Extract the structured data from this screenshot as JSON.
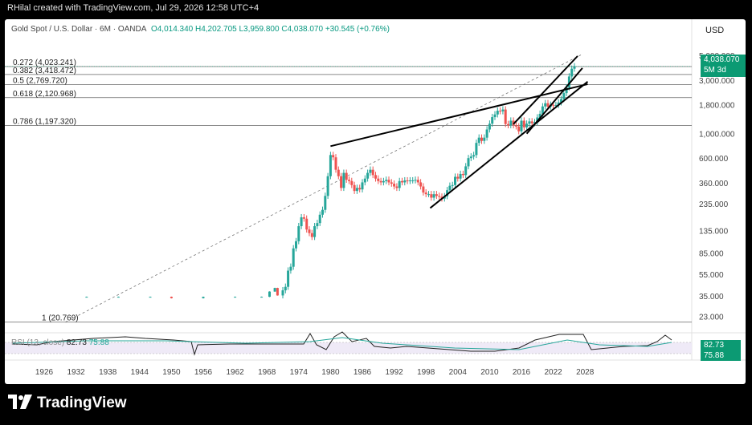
{
  "header": {
    "creator_line": "RHilal created with TradingView.com, Jul 29, 2026 12:58 UTC+4",
    "brand": "TradingView"
  },
  "legend": {
    "symbol": "Gold Spot / U.S. Dollar · 6M · OANDA",
    "open": "O4,014.340",
    "high": "H4,202.705",
    "low": "L3,959.800",
    "close": "C4,038.070",
    "change": "+30.545 (+0.76%)"
  },
  "price_label": {
    "currency": "USD",
    "last": "4,038.070",
    "countdown": "5M 3d"
  },
  "rsi": {
    "label": "RSI (13, close)",
    "value": "82.73",
    "ma_value": "75.88",
    "badge_value": "82.73",
    "badge_ma": "75.88"
  },
  "colors": {
    "up": "#26a69a",
    "down": "#ef5350",
    "accent": "#0c9a73",
    "rsi_line": "#222222",
    "rsi_ma": "#26a69a"
  },
  "chart_data": {
    "type": "candlestick",
    "title": "Gold Spot / U.S. Dollar · 6M · OANDA",
    "scale": "log",
    "y_ticks": [
      "5,000.000",
      "3,000.000",
      "1,800.000",
      "1,000.000",
      "600.000",
      "360.000",
      "235.000",
      "135.000",
      "85.000",
      "55.000",
      "35.000",
      "23.000"
    ],
    "x_ticks": [
      "1926",
      "1932",
      "1938",
      "1944",
      "1950",
      "1956",
      "1962",
      "1968",
      "1974",
      "1980",
      "1986",
      "1992",
      "1998",
      "2004",
      "2010",
      "2016",
      "2022",
      "2028"
    ],
    "fib_levels": [
      {
        "label": "0.272 (4,023.241)",
        "value": 4023.241
      },
      {
        "label": "0.382 (3,418.472)",
        "value": 3418.472
      },
      {
        "label": "0.5 (2,769.720)",
        "value": 2769.72
      },
      {
        "label": "0.618 (2,120.968)",
        "value": 2120.968
      },
      {
        "label": "0.786 (1,197.320)",
        "value": 1197.32
      },
      {
        "label": "1 (20.769)",
        "value": 20.769
      }
    ],
    "series": [
      {
        "name": "Gold Spot / U.S. Dollar",
        "points": [
          [
            1934,
            35
          ],
          [
            1940,
            35
          ],
          [
            1946,
            35
          ],
          [
            1950,
            34
          ],
          [
            1956,
            35
          ],
          [
            1962,
            35
          ],
          [
            1967,
            35
          ],
          [
            1968.5,
            39
          ],
          [
            1969.5,
            42
          ],
          [
            1970,
            36
          ],
          [
            1971,
            40
          ],
          [
            1971.5,
            43
          ],
          [
            1972,
            60
          ],
          [
            1972.5,
            65
          ],
          [
            1973,
            95
          ],
          [
            1973.5,
            110
          ],
          [
            1974,
            150
          ],
          [
            1974.5,
            180
          ],
          [
            1975,
            175
          ],
          [
            1975.5,
            140
          ],
          [
            1976,
            130
          ],
          [
            1976.5,
            120
          ],
          [
            1977,
            150
          ],
          [
            1977.5,
            160
          ],
          [
            1978,
            190
          ],
          [
            1978.5,
            210
          ],
          [
            1979,
            280
          ],
          [
            1979.5,
            420
          ],
          [
            1980,
            650
          ],
          [
            1980.5,
            620
          ],
          [
            1981,
            480
          ],
          [
            1981.5,
            420
          ],
          [
            1982,
            330
          ],
          [
            1982.5,
            450
          ],
          [
            1983,
            390
          ],
          [
            1983.5,
            380
          ],
          [
            1984,
            350
          ],
          [
            1984.5,
            310
          ],
          [
            1985,
            330
          ],
          [
            1985.5,
            320
          ],
          [
            1986,
            370
          ],
          [
            1986.5,
            400
          ],
          [
            1987,
            450
          ],
          [
            1987.5,
            480
          ],
          [
            1988,
            430
          ],
          [
            1988.5,
            400
          ],
          [
            1989,
            380
          ],
          [
            1989.5,
            370
          ],
          [
            1990,
            380
          ],
          [
            1990.5,
            390
          ],
          [
            1991,
            370
          ],
          [
            1991.5,
            360
          ],
          [
            1992,
            340
          ],
          [
            1992.5,
            330
          ],
          [
            1993,
            380
          ],
          [
            1993.5,
            370
          ],
          [
            1994,
            385
          ],
          [
            1994.5,
            380
          ],
          [
            1995,
            385
          ],
          [
            1995.5,
            385
          ],
          [
            1996,
            390
          ],
          [
            1996.5,
            370
          ],
          [
            1997,
            340
          ],
          [
            1997.5,
            300
          ],
          [
            1998,
            290
          ],
          [
            1998.5,
            290
          ],
          [
            1999,
            270
          ],
          [
            1999.5,
            290
          ],
          [
            2000,
            280
          ],
          [
            2000.5,
            275
          ],
          [
            2001,
            265
          ],
          [
            2001.5,
            278
          ],
          [
            2002,
            315
          ],
          [
            2002.5,
            345
          ],
          [
            2003,
            350
          ],
          [
            2003.5,
            415
          ],
          [
            2004,
            400
          ],
          [
            2004.5,
            440
          ],
          [
            2005,
            430
          ],
          [
            2005.5,
            515
          ],
          [
            2006,
            610
          ],
          [
            2006.5,
            630
          ],
          [
            2007,
            650
          ],
          [
            2007.5,
            835
          ],
          [
            2008,
            930
          ],
          [
            2008.5,
            870
          ],
          [
            2009,
            930
          ],
          [
            2009.5,
            1100
          ],
          [
            2010,
            1240
          ],
          [
            2010.5,
            1420
          ],
          [
            2011,
            1500
          ],
          [
            2011.5,
            1620
          ],
          [
            2012,
            1600
          ],
          [
            2012.5,
            1660
          ],
          [
            2013,
            1230
          ],
          [
            2013.5,
            1200
          ],
          [
            2014,
            1320
          ],
          [
            2014.5,
            1200
          ],
          [
            2015,
            1170
          ],
          [
            2015.5,
            1060
          ],
          [
            2016,
            1320
          ],
          [
            2016.5,
            1150
          ],
          [
            2017,
            1240
          ],
          [
            2017.5,
            1300
          ],
          [
            2018,
            1250
          ],
          [
            2018.5,
            1280
          ],
          [
            2019,
            1410
          ],
          [
            2019.5,
            1520
          ],
          [
            2020,
            1770
          ],
          [
            2020.5,
            1890
          ],
          [
            2021,
            1760
          ],
          [
            2021.5,
            1830
          ],
          [
            2022,
            1810
          ],
          [
            2022.5,
            1820
          ],
          [
            2023,
            1920
          ],
          [
            2023.5,
            2060
          ],
          [
            2024,
            2330
          ],
          [
            2024.5,
            2620
          ],
          [
            2025,
            3280
          ],
          [
            2025.5,
            3850
          ],
          [
            2026,
            4038.07
          ]
        ]
      },
      {
        "name": "RSI (13, close)",
        "values": "oscillator"
      }
    ],
    "trendlines": [
      {
        "name": "wedge-upper",
        "from": [
          1980,
          780
        ],
        "to": [
          2028.5,
          2800
        ]
      },
      {
        "name": "wedge-lower",
        "from": [
          1998.8,
          218
        ],
        "to": [
          2028.5,
          2950
        ]
      },
      {
        "name": "channel-upper",
        "from": [
          2014.5,
          1230
        ],
        "to": [
          2026.6,
          5000
        ]
      },
      {
        "name": "channel-lower",
        "from": [
          2017,
          1010
        ],
        "to": [
          2027.5,
          3900
        ]
      }
    ],
    "fib_connector": {
      "from": [
        1930,
        20.769
      ],
      "to": [
        2027.5,
        5200
      ]
    }
  }
}
